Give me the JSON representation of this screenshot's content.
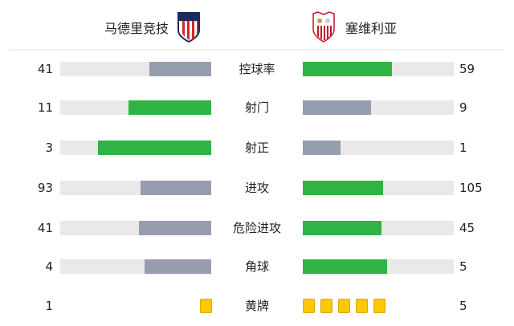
{
  "home": {
    "name": "马德里竞技",
    "crest": "atletico-madrid-crest"
  },
  "away": {
    "name": "塞维利亚",
    "crest": "sevilla-crest"
  },
  "colors": {
    "leader": "#2fb344",
    "trailer": "#969daf",
    "track": "#e9e9e9",
    "card": "#fcc800"
  },
  "stats": [
    {
      "label": "控球率",
      "home": "41",
      "away": "59",
      "home_pct": 41,
      "away_pct": 59
    },
    {
      "label": "射门",
      "home": "11",
      "away": "9",
      "home_pct": 55,
      "away_pct": 45
    },
    {
      "label": "射正",
      "home": "3",
      "away": "1",
      "home_pct": 75,
      "away_pct": 25
    },
    {
      "label": "进攻",
      "home": "93",
      "away": "105",
      "home_pct": 47,
      "away_pct": 53
    },
    {
      "label": "危险进攻",
      "home": "41",
      "away": "45",
      "home_pct": 48,
      "away_pct": 52
    },
    {
      "label": "角球",
      "home": "4",
      "away": "5",
      "home_pct": 44,
      "away_pct": 56
    }
  ],
  "yellow": {
    "label": "黄牌",
    "home": "1",
    "away": "5"
  }
}
